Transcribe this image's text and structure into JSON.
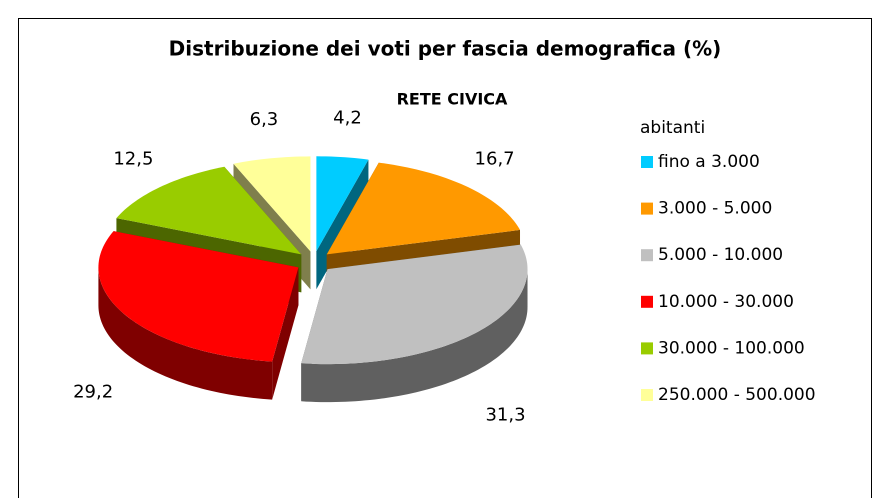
{
  "chart_data": {
    "type": "pie3d",
    "title": "Distribuzione dei voti per fascia demografica (%)",
    "subtitle": "RETE CIVICA",
    "legend_title": "abitanti",
    "legend": "right",
    "categories": [
      "fino a 3.000",
      "3.000 - 5.000",
      "5.000 - 10.000",
      "10.000 - 30.000",
      "30.000 - 100.000",
      "250.000 - 500.000"
    ],
    "values": [
      4.2,
      16.7,
      31.3,
      29.2,
      12.5,
      6.3
    ],
    "value_labels": [
      "4,2",
      "16,7",
      "31,3",
      "29,2",
      "12,5",
      "6,3"
    ],
    "colors": [
      "#00ccff",
      "#ff9900",
      "#c0c0c0",
      "#ff0000",
      "#99cc00",
      "#ffff99"
    ]
  }
}
